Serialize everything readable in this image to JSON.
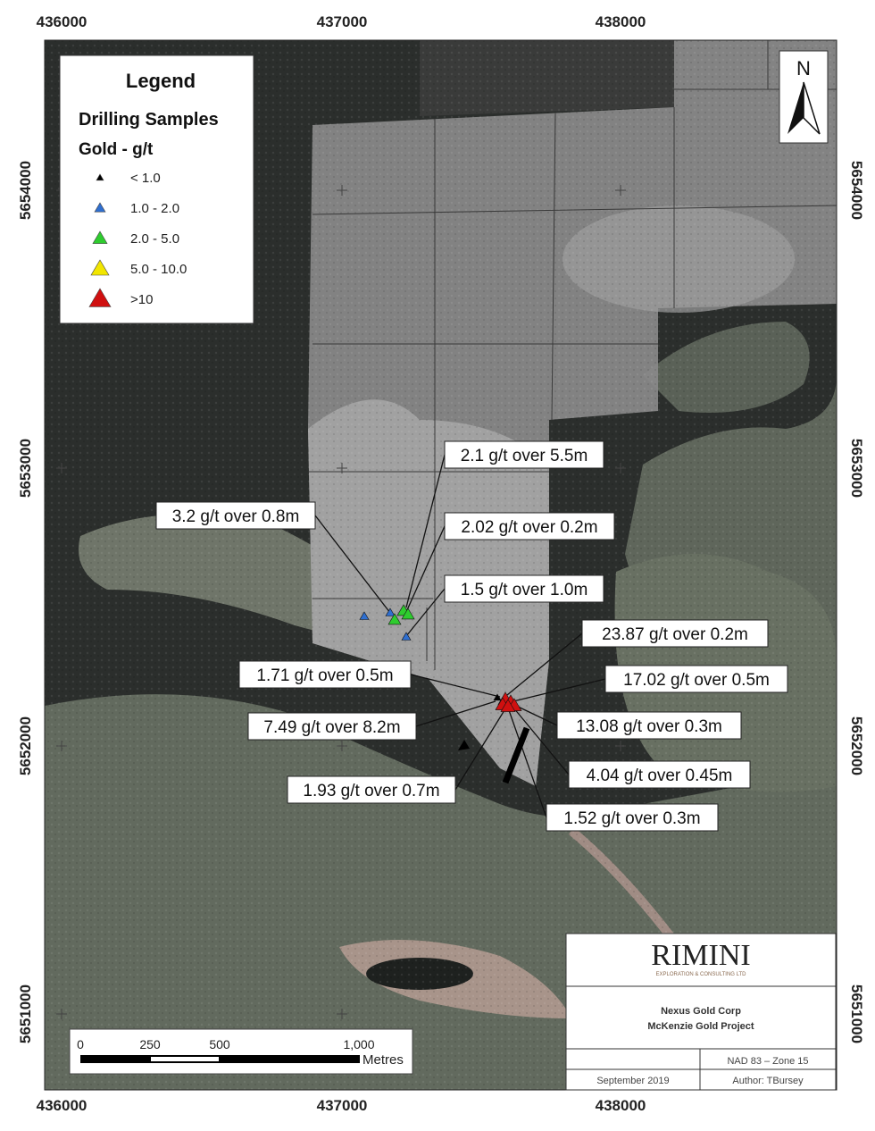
{
  "map": {
    "easting_ticks": [
      "436000",
      "437000",
      "438000"
    ],
    "northing_ticks": [
      "5654000",
      "5653000",
      "5652000",
      "5651000"
    ],
    "colors": {
      "lt1": "#000000",
      "c1to2": "#2f6fd0",
      "c2to5": "#2ecc2e",
      "c5to10": "#f2e600",
      "gt10": "#d01010"
    }
  },
  "legend": {
    "title": "Legend",
    "subtitle": "Drilling Samples",
    "group": "Gold - g/t",
    "items": [
      {
        "label": "< 1.0",
        "color": "#000000"
      },
      {
        "label": "1.0 - 2.0",
        "color": "#2f6fd0"
      },
      {
        "label": "2.0 - 5.0",
        "color": "#2ecc2e"
      },
      {
        "label": "5.0 - 10.0",
        "color": "#f2e600"
      },
      {
        "label": ">10",
        "color": "#d01010"
      }
    ]
  },
  "north_arrow": {
    "label": "N"
  },
  "callouts": [
    "2.1 g/t over 5.5m",
    "3.2 g/t over 0.8m",
    "2.02 g/t over 0.2m",
    "1.5 g/t over 1.0m",
    "23.87 g/t over 0.2m",
    "1.71 g/t over 0.5m",
    "17.02 g/t over 0.5m",
    "7.49 g/t over 8.2m",
    "13.08 g/t over 0.3m",
    "4.04 g/t over 0.45m",
    "1.93 g/t over 0.7m",
    "1.52 g/t over 0.3m"
  ],
  "scale_bar": {
    "ticks": [
      "0",
      "250",
      "500",
      "1,000"
    ],
    "unit": "Metres"
  },
  "title_block": {
    "logo": "RIMINI",
    "logo_sub": "EXPLORATION & CONSULTING LTD",
    "client": "Nexus Gold Corp",
    "project": "McKenzie Gold Project",
    "datum": "NAD 83 – Zone 15",
    "date": "September 2019",
    "author": "Author:  TBursey"
  }
}
